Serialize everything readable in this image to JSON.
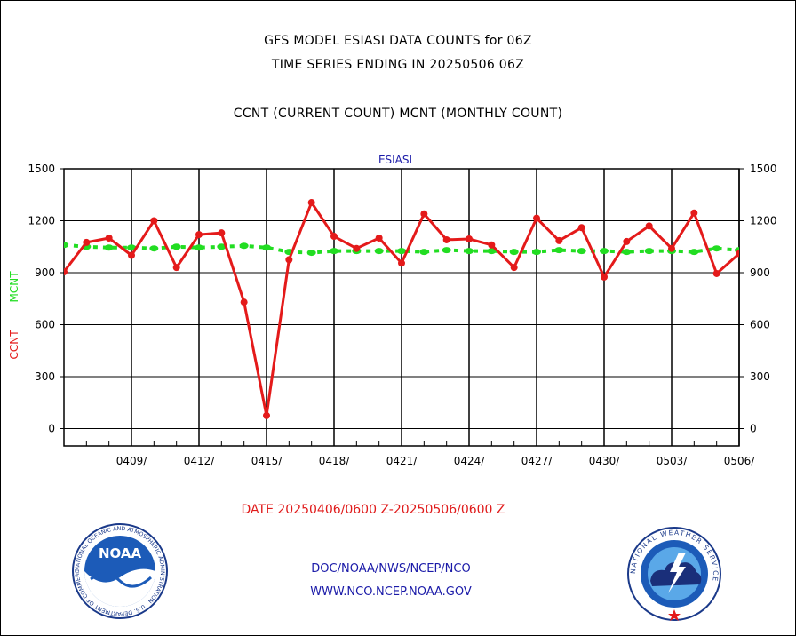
{
  "header": {
    "title_line1": "GFS MODEL ESIASI DATA COUNTS for 06Z",
    "title_line2": "TIME SERIES ENDING IN 20250506 06Z",
    "title_line3": "CCNT (CURRENT COUNT) MCNT (MONTHLY COUNT)"
  },
  "chart_data": {
    "type": "line",
    "title": "ESIASI",
    "ylabel_left": "CCNT",
    "ylabel_mcnt": "MCNT",
    "ylim": [
      -100,
      1500
    ],
    "yticks": [
      0,
      300,
      600,
      900,
      1200,
      1500
    ],
    "grid": true,
    "x_tick_labels": [
      "0409/",
      "0412/",
      "0415/",
      "0418/",
      "0421/",
      "0424/",
      "0427/",
      "0430/",
      "0503/",
      "0506/"
    ],
    "x_dates": [
      "0406",
      "0407",
      "0408",
      "0409",
      "0410",
      "0411",
      "0412",
      "0413",
      "0414",
      "0415",
      "0416",
      "0417",
      "0418",
      "0419",
      "0420",
      "0421",
      "0422",
      "0423",
      "0424",
      "0425",
      "0426",
      "0427",
      "0428",
      "0429",
      "0430",
      "0501",
      "0502",
      "0503",
      "0504",
      "0505",
      "0506"
    ],
    "series": [
      {
        "name": "CCNT",
        "color": "#e41a1a",
        "values": [
          905,
          1075,
          1100,
          1000,
          1200,
          930,
          1120,
          1130,
          730,
          75,
          975,
          1305,
          1110,
          1040,
          1100,
          955,
          1240,
          1090,
          1095,
          1060,
          930,
          1215,
          1085,
          1160,
          875,
          1080,
          1170,
          1040,
          1245,
          895,
          1010
        ]
      },
      {
        "name": "MCNT",
        "color": "#22dd22",
        "values": [
          1060,
          1050,
          1045,
          1045,
          1040,
          1050,
          1045,
          1050,
          1055,
          1045,
          1020,
          1015,
          1025,
          1025,
          1025,
          1025,
          1020,
          1030,
          1025,
          1025,
          1020,
          1020,
          1030,
          1025,
          1025,
          1020,
          1025,
          1025,
          1020,
          1040,
          1030
        ]
      }
    ]
  },
  "footer": {
    "date_range": "DATE 20250406/0600 Z-20250506/0600 Z",
    "link1": "DOC/NOAA/NWS/NCEP/NCO",
    "link2": "WWW.NCO.NCEP.NOAA.GOV",
    "noaa_logo_text": "NOAA",
    "noaa_ring_text": "NATIONAL OCEANIC AND ATMOSPHERIC ADMINISTRATION · U.S. DEPARTMENT OF COMMERCE ·",
    "nws_ring_text": "NATIONAL WEATHER SERVICE"
  }
}
